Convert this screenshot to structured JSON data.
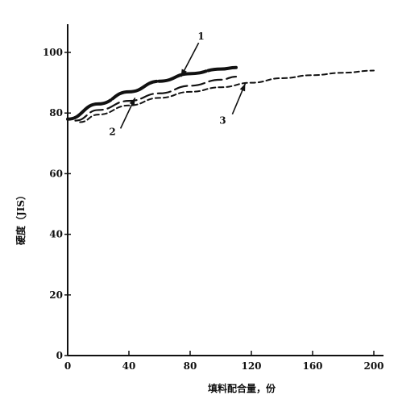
{
  "chart_data": {
    "type": "line",
    "title": "",
    "xlabel": "填料配合量，份",
    "ylabel": "硬度（JIS）",
    "xlim": [
      0,
      205
    ],
    "ylim": [
      0,
      110
    ],
    "x_ticks": [
      0,
      40,
      80,
      120,
      160,
      200
    ],
    "y_ticks": [
      0,
      20,
      40,
      60,
      80,
      100
    ],
    "grid": false,
    "series": [
      {
        "label": "1",
        "style": "solid-thick",
        "x": [
          0,
          20,
          40,
          60,
          80,
          100,
          110
        ],
        "y": [
          78,
          83,
          87,
          90.5,
          93,
          94.5,
          95
        ]
      },
      {
        "label": "2",
        "style": "long-dash",
        "x": [
          5,
          20,
          40,
          60,
          80,
          100,
          110
        ],
        "y": [
          77.5,
          81,
          84,
          86.5,
          89,
          91,
          92
        ]
      },
      {
        "label": "3",
        "style": "short-dash",
        "x": [
          8,
          20,
          40,
          60,
          80,
          100,
          120,
          140,
          160,
          180,
          200
        ],
        "y": [
          77,
          79.5,
          82.5,
          85,
          87,
          88.5,
          90,
          91.5,
          92.5,
          93.3,
          94
        ]
      }
    ],
    "callouts": [
      {
        "label": "1",
        "x": 74,
        "y": 92
      },
      {
        "label": "2",
        "x": 44,
        "y": 85
      },
      {
        "label": "3",
        "x": 116,
        "y": 89.7
      }
    ]
  }
}
